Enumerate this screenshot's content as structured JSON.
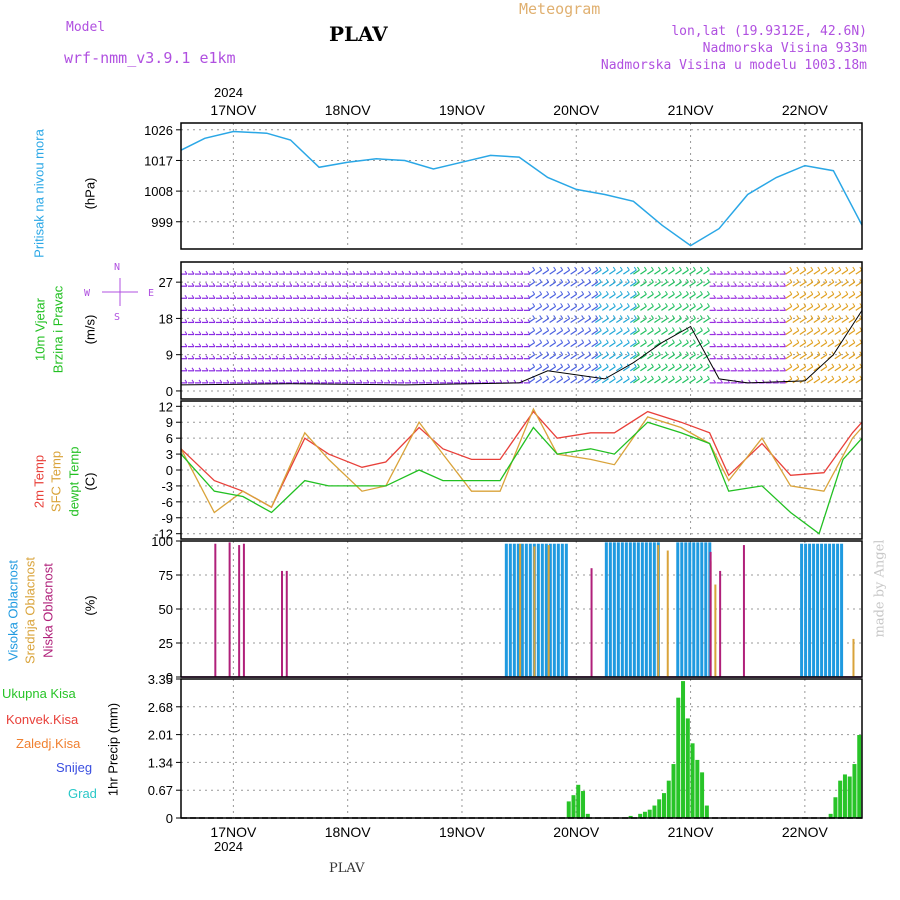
{
  "header": {
    "model_label": "Model",
    "model_name": "wrf-nmm_v3.9.1  e1km",
    "station": "PLAV",
    "product": "Meteogram",
    "coords": "lon,lat (19.9312E, 42.6N)",
    "elevation": "Nadmorska Visina 933m",
    "model_elevation": "Nadmorska Visina u modelu 1003.18m"
  },
  "footer": {
    "station": "PLAV",
    "credit": "made by Angel"
  },
  "colors": {
    "pressure": "#2aa7e6",
    "temp2m": "#e8403a",
    "sfc": "#d9a33a",
    "dew": "#22c022",
    "high_cloud": "#1f9ae0",
    "mid_cloud": "#d9a33a",
    "low_cloud": "#b0207a",
    "total_rain": "#28c428",
    "conv": "#e8403a",
    "frozen": "#f08030",
    "snow": "#3a4ee0",
    "grad": "#2ac8c8",
    "purple_text": "#b050e0"
  },
  "chart_data": [
    {
      "type": "line",
      "panel": "pressure",
      "year": "2024",
      "day_labels": [
        "17NOV",
        "18NOV",
        "19NOV",
        "20NOV",
        "21NOV",
        "22NOV"
      ],
      "ylabel": "Pritisak na nivou mora",
      "unit": "(hPa)",
      "yticks": [
        999,
        1008,
        1017,
        1026
      ],
      "ylim": [
        991,
        1028
      ],
      "x_start": "2024-11-16T13:00",
      "x_end": "2024-11-22T12:00",
      "series": [
        {
          "points": [
            [
              "2024-11-16T13:00",
              1020
            ],
            [
              "2024-11-16T18:00",
              1023.5
            ],
            [
              "2024-11-17T00:00",
              1025.5
            ],
            [
              "2024-11-17T07:00",
              1025
            ],
            [
              "2024-11-17T12:00",
              1023
            ],
            [
              "2024-11-17T18:00",
              1015
            ],
            [
              "2024-11-18T00:00",
              1016.5
            ],
            [
              "2024-11-18T06:00",
              1017.5
            ],
            [
              "2024-11-18T12:00",
              1017
            ],
            [
              "2024-11-18T18:00",
              1014.5
            ],
            [
              "2024-11-19T00:00",
              1016.5
            ],
            [
              "2024-11-19T06:00",
              1018.5
            ],
            [
              "2024-11-19T12:00",
              1018
            ],
            [
              "2024-11-19T18:00",
              1012
            ],
            [
              "2024-11-20T00:00",
              1008.5
            ],
            [
              "2024-11-20T06:00",
              1007
            ],
            [
              "2024-11-20T12:00",
              1005
            ],
            [
              "2024-11-20T18:00",
              998
            ],
            [
              "2024-11-21T00:00",
              992
            ],
            [
              "2024-11-21T06:00",
              997
            ],
            [
              "2024-11-21T12:00",
              1007
            ],
            [
              "2024-11-21T18:00",
              1012
            ],
            [
              "2024-11-22T00:00",
              1015.5
            ],
            [
              "2024-11-22T06:00",
              1014
            ],
            [
              "2024-11-22T12:00",
              998
            ]
          ]
        }
      ]
    },
    {
      "type": "barbs",
      "panel": "wind",
      "ylabel": [
        "10m Vjetar",
        "Brzina i Pravac"
      ],
      "unit": "(m/s)",
      "yticks": [
        0,
        9,
        18,
        27
      ],
      "ylim": [
        -2,
        32
      ],
      "compass": {
        "n": "N",
        "s": "S",
        "w": "W",
        "e": "E"
      },
      "barb_levels": [
        2,
        5,
        8,
        11,
        14,
        17,
        20,
        23,
        26,
        29
      ],
      "speed_series": {
        "points": [
          [
            "2024-11-16T13:00",
            1.5
          ],
          [
            "2024-11-17T12:00",
            1.8
          ],
          [
            "2024-11-18T12:00",
            1.5
          ],
          [
            "2024-11-19T12:00",
            2
          ],
          [
            "2024-11-19T18:00",
            5
          ],
          [
            "2024-11-20T06:00",
            3
          ],
          [
            "2024-11-20T12:00",
            7
          ],
          [
            "2024-11-20T18:00",
            12
          ],
          [
            "2024-11-21T00:00",
            16
          ],
          [
            "2024-11-21T06:00",
            3
          ],
          [
            "2024-11-21T12:00",
            2
          ],
          [
            "2024-11-22T00:00",
            2.5
          ],
          [
            "2024-11-22T06:00",
            9
          ],
          [
            "2024-11-22T12:00",
            20
          ]
        ]
      },
      "direction_bands": [
        {
          "from": "2024-11-16T13:00",
          "to": "2024-11-19T14:00",
          "color": "#8a2be2"
        },
        {
          "from": "2024-11-19T14:00",
          "to": "2024-11-20T04:00",
          "color": "#4a60e0"
        },
        {
          "from": "2024-11-20T04:00",
          "to": "2024-11-20T12:00",
          "color": "#22a8d8"
        },
        {
          "from": "2024-11-20T12:00",
          "to": "2024-11-21T04:00",
          "color": "#20c060"
        },
        {
          "from": "2024-11-21T04:00",
          "to": "2024-11-21T20:00",
          "color": "#9a30e0"
        },
        {
          "from": "2024-11-21T20:00",
          "to": "2024-11-22T12:00",
          "color": "#e0a020"
        }
      ]
    },
    {
      "type": "line",
      "panel": "temperature",
      "ylabel": [
        "2m Temp",
        "SFC Temp",
        "dewpt Temp"
      ],
      "unit": "(C)",
      "yticks": [
        -12,
        -9,
        -6,
        -3,
        0,
        3,
        6,
        9,
        12
      ],
      "ylim": [
        -13,
        13
      ],
      "series": [
        {
          "name": "2m Temp",
          "points": [
            [
              "2024-11-16T13:00",
              4
            ],
            [
              "2024-11-16T20:00",
              -2
            ],
            [
              "2024-11-17T02:00",
              -4
            ],
            [
              "2024-11-17T08:00",
              -7
            ],
            [
              "2024-11-17T15:00",
              6
            ],
            [
              "2024-11-17T20:00",
              3
            ],
            [
              "2024-11-18T03:00",
              0.5
            ],
            [
              "2024-11-18T08:00",
              1.5
            ],
            [
              "2024-11-18T15:00",
              8
            ],
            [
              "2024-11-18T20:00",
              4
            ],
            [
              "2024-11-19T02:00",
              2
            ],
            [
              "2024-11-19T08:00",
              2
            ],
            [
              "2024-11-19T15:00",
              11
            ],
            [
              "2024-11-19T20:00",
              6
            ],
            [
              "2024-11-20T03:00",
              7
            ],
            [
              "2024-11-20T08:00",
              7
            ],
            [
              "2024-11-20T15:00",
              11
            ],
            [
              "2024-11-20T22:00",
              9
            ],
            [
              "2024-11-21T04:00",
              7
            ],
            [
              "2024-11-21T08:00",
              -1
            ],
            [
              "2024-11-21T15:00",
              5
            ],
            [
              "2024-11-21T21:00",
              -1
            ],
            [
              "2024-11-22T04:00",
              -0.5
            ],
            [
              "2024-11-22T10:00",
              7
            ],
            [
              "2024-11-22T12:00",
              9
            ]
          ]
        },
        {
          "name": "SFC Temp",
          "points": [
            [
              "2024-11-16T13:00",
              4
            ],
            [
              "2024-11-16T20:00",
              -8
            ],
            [
              "2024-11-17T02:00",
              -4
            ],
            [
              "2024-11-17T08:00",
              -7
            ],
            [
              "2024-11-17T15:00",
              7
            ],
            [
              "2024-11-17T20:00",
              2
            ],
            [
              "2024-11-18T03:00",
              -4
            ],
            [
              "2024-11-18T08:00",
              -3
            ],
            [
              "2024-11-18T15:00",
              9
            ],
            [
              "2024-11-18T20:00",
              3
            ],
            [
              "2024-11-19T02:00",
              -4
            ],
            [
              "2024-11-19T08:00",
              -4
            ],
            [
              "2024-11-19T15:00",
              11.5
            ],
            [
              "2024-11-19T20:00",
              3
            ],
            [
              "2024-11-20T03:00",
              2
            ],
            [
              "2024-11-20T08:00",
              1
            ],
            [
              "2024-11-20T15:00",
              10
            ],
            [
              "2024-11-20T22:00",
              8
            ],
            [
              "2024-11-21T04:00",
              5
            ],
            [
              "2024-11-21T08:00",
              -2
            ],
            [
              "2024-11-21T15:00",
              6
            ],
            [
              "2024-11-21T21:00",
              -3
            ],
            [
              "2024-11-22T04:00",
              -4
            ],
            [
              "2024-11-22T10:00",
              6
            ],
            [
              "2024-11-22T12:00",
              8
            ]
          ]
        },
        {
          "name": "dewpt Temp",
          "points": [
            [
              "2024-11-16T13:00",
              3
            ],
            [
              "2024-11-16T20:00",
              -4
            ],
            [
              "2024-11-17T02:00",
              -5
            ],
            [
              "2024-11-17T08:00",
              -8
            ],
            [
              "2024-11-17T15:00",
              -2
            ],
            [
              "2024-11-17T20:00",
              -3
            ],
            [
              "2024-11-18T03:00",
              -3
            ],
            [
              "2024-11-18T08:00",
              -3
            ],
            [
              "2024-11-18T15:00",
              0
            ],
            [
              "2024-11-18T20:00",
              -2
            ],
            [
              "2024-11-19T02:00",
              -2
            ],
            [
              "2024-11-19T08:00",
              -2
            ],
            [
              "2024-11-19T15:00",
              8
            ],
            [
              "2024-11-19T20:00",
              3
            ],
            [
              "2024-11-20T03:00",
              4
            ],
            [
              "2024-11-20T08:00",
              3
            ],
            [
              "2024-11-20T15:00",
              9
            ],
            [
              "2024-11-20T22:00",
              7
            ],
            [
              "2024-11-21T04:00",
              5
            ],
            [
              "2024-11-21T08:00",
              -4
            ],
            [
              "2024-11-21T15:00",
              -3
            ],
            [
              "2024-11-21T21:00",
              -8
            ],
            [
              "2024-11-22T03:00",
              -12
            ],
            [
              "2024-11-22T08:00",
              2
            ],
            [
              "2024-11-22T12:00",
              6
            ]
          ]
        }
      ]
    },
    {
      "type": "bar",
      "panel": "clouds",
      "ylabel": [
        "Visoka Oblacnost",
        "Srednja Oblacnost",
        "Niska Oblacnost"
      ],
      "unit": "(%)",
      "yticks": [
        0,
        25,
        50,
        75,
        100
      ],
      "ylim": [
        0,
        100
      ],
      "low_cloud_bars": [
        [
          "2024-11-16T20:00",
          98
        ],
        [
          "2024-11-16T23:00",
          99
        ],
        [
          "2024-11-17T01:00",
          97
        ],
        [
          "2024-11-17T02:00",
          98
        ],
        [
          "2024-11-17T10:00",
          78
        ],
        [
          "2024-11-17T11:00",
          78
        ],
        [
          "2024-11-20T03:00",
          80
        ],
        [
          "2024-11-21T04:00",
          92
        ],
        [
          "2024-11-21T06:00",
          78
        ],
        [
          "2024-11-21T11:00",
          97
        ]
      ],
      "high_cloud_blocks": [
        {
          "from": "2024-11-19T09:00",
          "to": "2024-11-19T22:00",
          "value": 98
        },
        {
          "from": "2024-11-20T06:00",
          "to": "2024-11-20T17:00",
          "value": 99
        },
        {
          "from": "2024-11-20T21:00",
          "to": "2024-11-21T04:00",
          "value": 99
        },
        {
          "from": "2024-11-21T23:00",
          "to": "2024-11-22T08:00",
          "value": 98
        }
      ],
      "mid_cloud_bars": [
        [
          "2024-11-19T12:00",
          98
        ],
        [
          "2024-11-19T15:00",
          96
        ],
        [
          "2024-11-19T18:00",
          97
        ],
        [
          "2024-11-20T17:00",
          97
        ],
        [
          "2024-11-20T19:00",
          93
        ],
        [
          "2024-11-21T04:00",
          85
        ],
        [
          "2024-11-21T05:00",
          68
        ],
        [
          "2024-11-22T10:00",
          28
        ]
      ]
    },
    {
      "type": "bar",
      "panel": "precipitation",
      "legend": [
        "Ukupna Kisa",
        "Konvek.Kisa",
        "Zaledj.Kisa",
        "Snijeg",
        "Grad"
      ],
      "ylabel": "1hr Precip (mm)",
      "yticks": [
        0,
        0.67,
        1.34,
        2.01,
        2.68,
        3.35
      ],
      "ylim": [
        0,
        3.35
      ],
      "total_rain": [
        [
          "2024-11-19T22:00",
          0.4
        ],
        [
          "2024-11-19T23:00",
          0.55
        ],
        [
          "2024-11-20T00:00",
          0.8
        ],
        [
          "2024-11-20T01:00",
          0.65
        ],
        [
          "2024-11-20T02:00",
          0.1
        ],
        [
          "2024-11-20T11:00",
          0.05
        ],
        [
          "2024-11-20T13:00",
          0.1
        ],
        [
          "2024-11-20T14:00",
          0.15
        ],
        [
          "2024-11-20T15:00",
          0.2
        ],
        [
          "2024-11-20T16:00",
          0.3
        ],
        [
          "2024-11-20T17:00",
          0.45
        ],
        [
          "2024-11-20T18:00",
          0.6
        ],
        [
          "2024-11-20T19:00",
          0.9
        ],
        [
          "2024-11-20T20:00",
          1.3
        ],
        [
          "2024-11-20T21:00",
          2.9
        ],
        [
          "2024-11-20T22:00",
          3.3
        ],
        [
          "2024-11-20T23:00",
          2.4
        ],
        [
          "2024-11-21T00:00",
          1.8
        ],
        [
          "2024-11-21T01:00",
          1.4
        ],
        [
          "2024-11-21T02:00",
          1.1
        ],
        [
          "2024-11-21T03:00",
          0.3
        ],
        [
          "2024-11-22T05:00",
          0.1
        ],
        [
          "2024-11-22T06:00",
          0.5
        ],
        [
          "2024-11-22T07:00",
          0.9
        ],
        [
          "2024-11-22T08:00",
          1.05
        ],
        [
          "2024-11-22T09:00",
          1.0
        ],
        [
          "2024-11-22T10:00",
          1.3
        ],
        [
          "2024-11-22T11:00",
          2.0
        ]
      ]
    }
  ]
}
